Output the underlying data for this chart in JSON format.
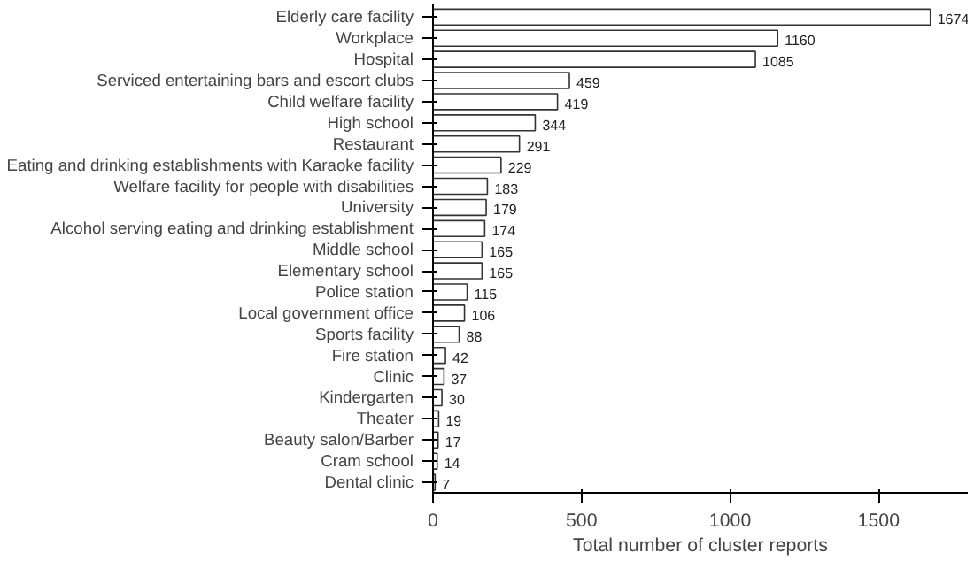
{
  "chart_data": {
    "type": "bar",
    "orientation": "horizontal",
    "xlabel": "Total number of cluster reports",
    "categories": [
      "Elderly care facility",
      "Workplace",
      "Hospital",
      "Serviced entertaining bars and escort clubs",
      "Child welfare facility",
      "High school",
      "Restaurant",
      "Eating and drinking establishments with Karaoke facility",
      "Welfare facility for people with disabilities",
      "University",
      "Alcohol serving eating and drinking establishment",
      "Middle school",
      "Elementary school",
      "Police station",
      "Local government office",
      "Sports facility",
      "Fire station",
      "Clinic",
      "Kindergarten",
      "Theater",
      "Beauty salon/Barber",
      "Cram school",
      "Dental clinic"
    ],
    "values": [
      1674,
      1160,
      1085,
      459,
      419,
      344,
      291,
      229,
      183,
      179,
      174,
      165,
      165,
      115,
      106,
      88,
      42,
      37,
      30,
      19,
      17,
      14,
      7
    ],
    "color": "#ffffff",
    "xlim": [
      0,
      1800
    ],
    "xticks": [
      0,
      500,
      1000,
      1500
    ],
    "data_labels": true,
    "grid": false
  }
}
